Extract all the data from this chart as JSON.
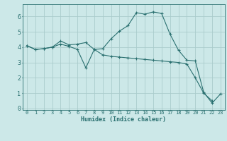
{
  "title": "",
  "xlabel": "Humidex (Indice chaleur)",
  "ylabel": "",
  "background_color": "#cce8e8",
  "grid_color": "#aacccc",
  "line_color": "#2a7070",
  "xlim": [
    -0.5,
    23.5
  ],
  "ylim": [
    -0.1,
    6.8
  ],
  "yticks": [
    0,
    1,
    2,
    3,
    4,
    5,
    6
  ],
  "xticks": [
    0,
    1,
    2,
    3,
    4,
    5,
    6,
    7,
    8,
    9,
    10,
    11,
    12,
    13,
    14,
    15,
    16,
    17,
    18,
    19,
    20,
    21,
    22,
    23
  ],
  "line1_x": [
    0,
    1,
    2,
    3,
    4,
    5,
    6,
    7,
    8,
    9,
    10,
    11,
    12,
    13,
    14,
    15,
    16,
    17,
    18,
    19,
    20,
    21,
    22,
    23
  ],
  "line1_y": [
    4.1,
    3.85,
    3.9,
    4.0,
    4.4,
    4.15,
    4.2,
    4.3,
    3.85,
    3.9,
    4.55,
    5.05,
    5.4,
    6.25,
    6.15,
    6.3,
    6.2,
    4.85,
    3.8,
    3.15,
    3.1,
    1.05,
    0.35,
    0.95
  ],
  "line2_x": [
    0,
    1,
    2,
    3,
    4,
    5,
    6,
    7,
    8,
    9,
    10,
    11,
    12,
    13,
    14,
    15,
    16,
    17,
    18,
    19,
    20,
    21,
    22,
    23
  ],
  "line2_y": [
    4.1,
    3.85,
    3.9,
    4.0,
    4.2,
    4.05,
    3.85,
    2.65,
    3.85,
    3.5,
    3.4,
    3.35,
    3.3,
    3.25,
    3.2,
    3.15,
    3.1,
    3.05,
    3.0,
    2.9,
    2.0,
    1.0,
    0.5,
    null
  ],
  "xlabel_fontsize": 6,
  "tick_fontsize": 5,
  "ytick_fontsize": 6
}
